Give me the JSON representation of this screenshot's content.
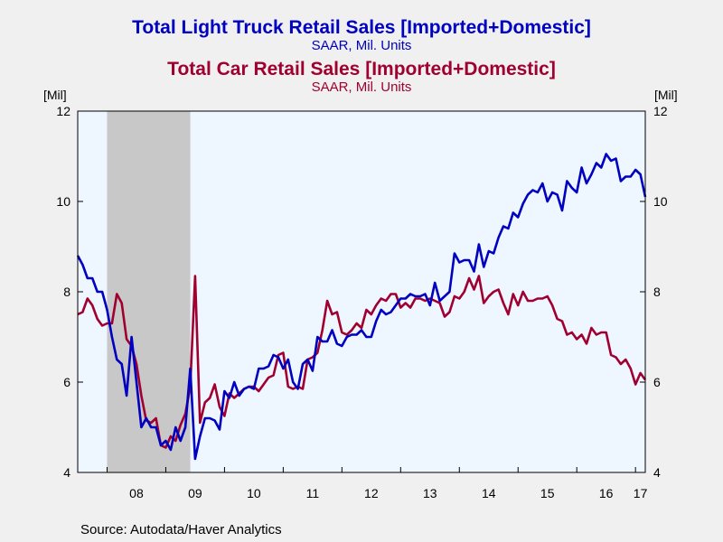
{
  "chart_data": {
    "type": "line",
    "title": "Total Light Truck Retail Sales [Imported+Domestic]",
    "subtitle": "SAAR, Mil. Units",
    "title2": "Total Car Retail Sales [Imported+Domestic]",
    "subtitle2": "SAAR, Mil. Units",
    "left_unit": "[Mil]",
    "right_unit": "[Mil]",
    "source": "Source:  Autodata/Haver Analytics",
    "ylim": [
      4,
      12
    ],
    "y_ticks": [
      4,
      6,
      8,
      10,
      12
    ],
    "x_tick_labels": [
      "08",
      "09",
      "10",
      "11",
      "12",
      "13",
      "14",
      "15",
      "16",
      "17"
    ],
    "x_start": "2007-07",
    "x_end": "2017-03",
    "recession": {
      "start": "2008-01",
      "end": "2009-06"
    },
    "colors": {
      "truck": "#0000c0",
      "car": "#a00030",
      "plot_bg": "#eef6ff",
      "recession": "#c8c8c8"
    },
    "series": [
      {
        "name": "Total Light Truck Retail Sales [Imported+Domestic]",
        "color": "#0000c0",
        "start": "2007-07",
        "values": [
          8.8,
          8.6,
          8.3,
          8.3,
          8.0,
          8.0,
          7.6,
          7.0,
          6.5,
          6.4,
          5.7,
          7.0,
          6.0,
          5.0,
          5.2,
          5.0,
          5.0,
          4.6,
          4.7,
          4.5,
          5.0,
          4.7,
          5.0,
          6.3,
          4.3,
          4.8,
          5.2,
          5.2,
          5.15,
          4.95,
          5.8,
          5.65,
          6.0,
          5.7,
          5.85,
          5.9,
          5.85,
          6.3,
          6.3,
          6.35,
          6.6,
          6.55,
          6.3,
          6.5,
          6.0,
          5.85,
          6.4,
          6.5,
          6.25,
          7.0,
          6.9,
          6.9,
          7.15,
          6.85,
          6.8,
          7.0,
          7.05,
          7.05,
          7.15,
          7.0,
          7.0,
          7.35,
          7.6,
          7.5,
          7.55,
          7.7,
          7.85,
          7.85,
          7.95,
          7.9,
          7.9,
          7.95,
          7.7,
          8.2,
          7.8,
          7.9,
          8.0,
          8.85,
          8.65,
          8.7,
          8.7,
          8.45,
          9.05,
          8.55,
          8.9,
          8.85,
          9.2,
          9.45,
          9.4,
          9.75,
          9.65,
          9.95,
          10.15,
          10.25,
          10.2,
          10.4,
          10.0,
          10.2,
          10.15,
          9.8,
          10.45,
          10.3,
          10.2,
          10.75,
          10.4,
          10.6,
          10.85,
          10.75,
          11.05,
          10.9,
          10.95,
          10.45,
          10.55,
          10.55,
          10.7,
          10.6,
          10.1
        ]
      },
      {
        "name": "Total Car Retail Sales [Imported+Domestic]",
        "color": "#a00030",
        "start": "2007-07",
        "values": [
          7.5,
          7.55,
          7.85,
          7.7,
          7.4,
          7.25,
          7.3,
          7.3,
          7.95,
          7.75,
          6.95,
          6.8,
          6.4,
          5.7,
          5.15,
          5.1,
          5.2,
          4.6,
          4.55,
          4.8,
          4.7,
          5.05,
          5.3,
          5.9,
          8.35,
          5.1,
          5.55,
          5.65,
          5.95,
          5.45,
          5.25,
          5.75,
          5.65,
          5.75,
          5.85,
          5.9,
          5.9,
          5.8,
          5.95,
          6.1,
          6.15,
          6.6,
          6.65,
          5.9,
          5.85,
          5.9,
          5.85,
          6.5,
          6.55,
          6.65,
          7.15,
          7.8,
          7.5,
          7.55,
          7.1,
          7.05,
          7.15,
          7.3,
          7.2,
          7.6,
          7.5,
          7.7,
          7.85,
          7.8,
          7.95,
          7.95,
          7.65,
          7.75,
          7.65,
          7.85,
          7.85,
          7.8,
          7.85,
          7.8,
          7.75,
          7.45,
          7.55,
          7.9,
          7.85,
          8.0,
          8.3,
          8.05,
          8.35,
          7.75,
          7.9,
          8.0,
          8.05,
          7.75,
          7.5,
          7.95,
          7.7,
          8.0,
          7.8,
          7.8,
          7.85,
          7.85,
          7.9,
          7.7,
          7.4,
          7.35,
          7.05,
          7.1,
          6.95,
          7.05,
          6.85,
          7.2,
          7.05,
          7.1,
          7.1,
          6.6,
          6.55,
          6.4,
          6.5,
          6.3,
          5.95,
          6.2,
          6.05
        ]
      }
    ]
  }
}
